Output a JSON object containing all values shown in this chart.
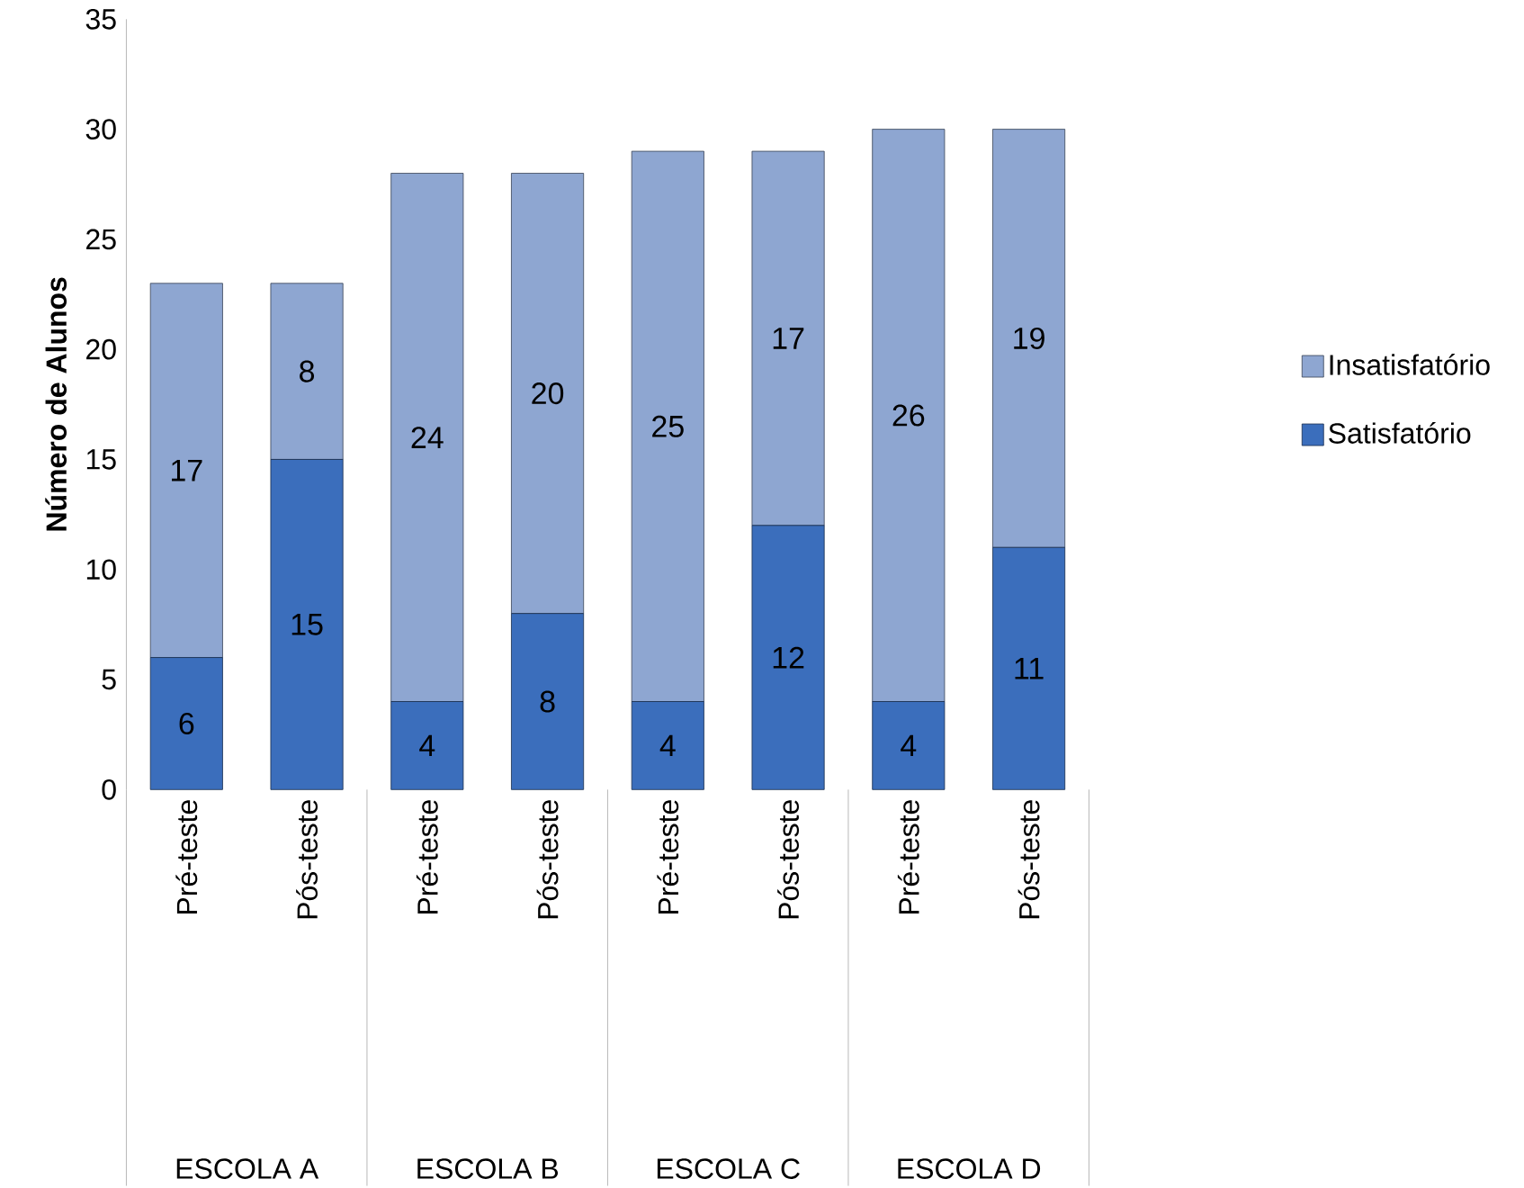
{
  "chart_data": {
    "type": "bar",
    "stacked": true,
    "ylabel": "Número de Alunos",
    "categories": [
      "Pré-teste",
      "Pós-teste",
      "Pré-teste",
      "Pós-teste",
      "Pré-teste",
      "Pós-teste",
      "Pré-teste",
      "Pós-teste"
    ],
    "series": [
      {
        "name": "Satisfatório",
        "color": "#3b6ebc",
        "values": [
          6,
          15,
          4,
          8,
          4,
          12,
          4,
          11
        ]
      },
      {
        "name": "Insatisfatório",
        "color": "#8ea6d1",
        "values": [
          17,
          8,
          24,
          20,
          25,
          17,
          26,
          19
        ]
      }
    ],
    "ylim": [
      0,
      35
    ],
    "yticks": [
      0,
      5,
      10,
      15,
      20,
      25,
      30,
      35
    ],
    "legend": "right",
    "data_labels": true,
    "annotations": [
      "ESCOLA A",
      "ESCOLA B",
      "ESCOLA C",
      "ESCOLA D"
    ]
  }
}
